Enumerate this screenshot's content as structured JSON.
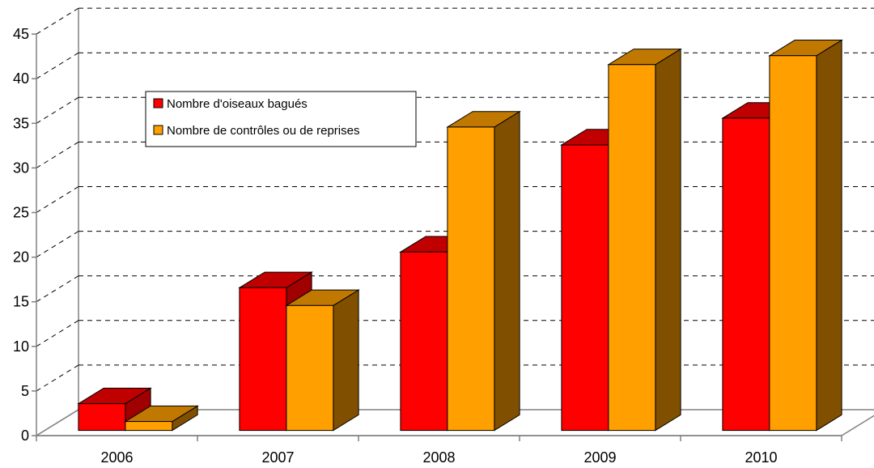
{
  "chart_data": {
    "type": "bar",
    "style": "3d-clustered-column",
    "categories": [
      "2006",
      "2007",
      "2008",
      "2009",
      "2010"
    ],
    "series": [
      {
        "name": "Nombre d'oiseaux bagués",
        "values": [
          3,
          16,
          20,
          32,
          35
        ],
        "color": "#ff0000"
      },
      {
        "name": "Nombre de contrôles ou de reprises",
        "values": [
          1,
          14,
          34,
          41,
          42
        ],
        "color": "#ffa000"
      }
    ],
    "ylim": [
      0,
      45
    ],
    "yticks": [
      0,
      5,
      10,
      15,
      20,
      25,
      30,
      35,
      40,
      45
    ],
    "grid": true,
    "legend_position": "upper-left"
  }
}
